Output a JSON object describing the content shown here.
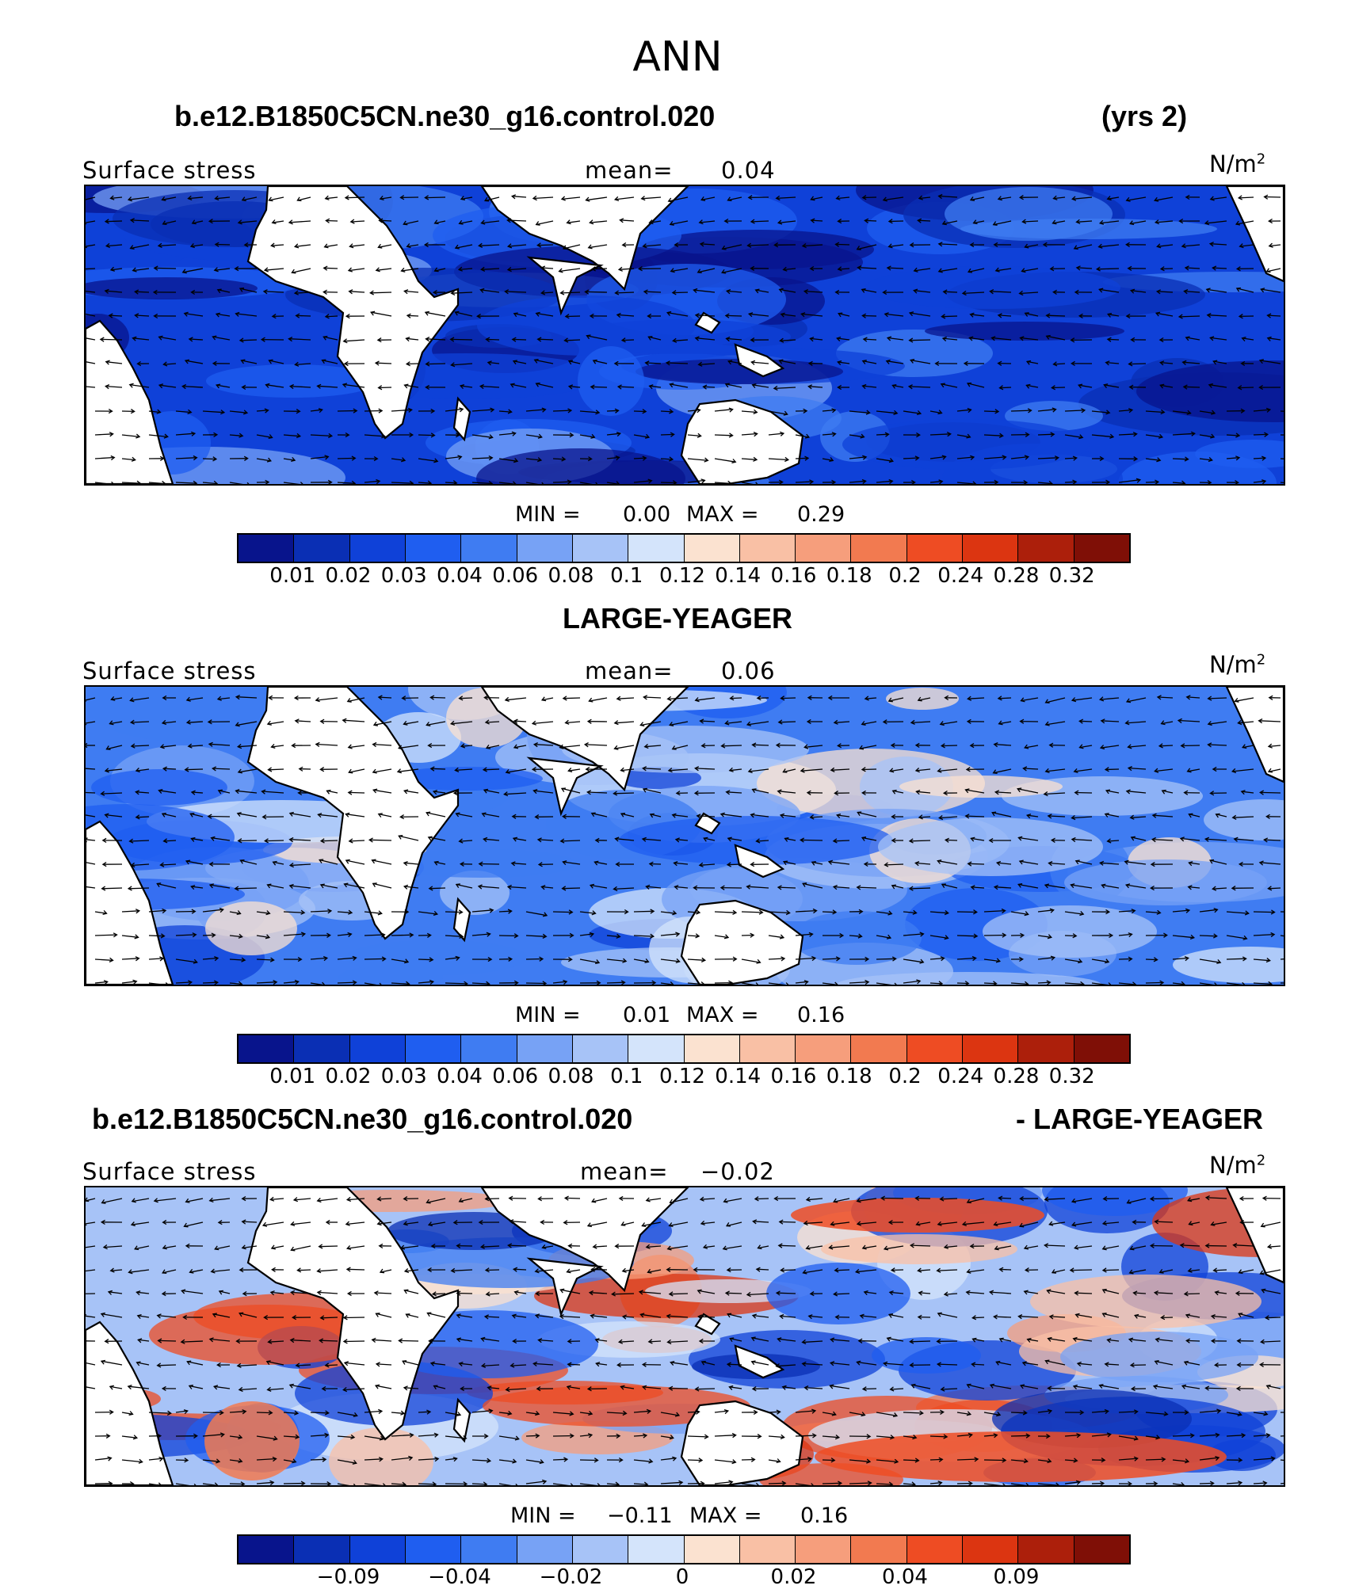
{
  "title": "ANN",
  "panels": [
    {
      "case_left": "b.e12.B1850C5CN.ne30_g16.control.020",
      "case_right": "(yrs 2)",
      "variable": "Surface stress",
      "mean_label": "mean=",
      "mean_value": "0.04",
      "unit_base": "N/m",
      "unit_exp": "2",
      "min_label": "MIN =",
      "min_value": "0.00",
      "max_label": "MAX =",
      "max_value": "0.29",
      "tick_labels": [
        "0.01",
        "0.02",
        "0.03",
        "0.04",
        "0.06",
        "0.08",
        "0.1",
        "0.12",
        "0.14",
        "0.16",
        "0.18",
        "0.2",
        "0.24",
        "0.28",
        "0.32"
      ],
      "colors": [
        "#08148c",
        "#0a2fb4",
        "#0f41d8",
        "#1f5ef0",
        "#3f7cf2",
        "#77a2f5",
        "#a7c3f7",
        "#d4e4fb",
        "#fbe2d0",
        "#f9c0a5",
        "#f69e7c",
        "#f27a50",
        "#ee4c23",
        "#dc3511",
        "#ac1f0b",
        "#7f0f06"
      ],
      "field_bias": 0.0
    },
    {
      "case_left": "",
      "case_center": "LARGE-YEAGER",
      "case_right": "",
      "variable": "Surface stress",
      "mean_label": "mean=",
      "mean_value": "0.06",
      "unit_base": "N/m",
      "unit_exp": "2",
      "min_label": "MIN =",
      "min_value": "0.01",
      "max_label": "MAX =",
      "max_value": "0.16",
      "tick_labels": [
        "0.01",
        "0.02",
        "0.03",
        "0.04",
        "0.06",
        "0.08",
        "0.1",
        "0.12",
        "0.14",
        "0.16",
        "0.18",
        "0.2",
        "0.24",
        "0.28",
        "0.32"
      ],
      "colors": [
        "#08148c",
        "#0a2fb4",
        "#0f41d8",
        "#1f5ef0",
        "#3f7cf2",
        "#77a2f5",
        "#a7c3f7",
        "#d4e4fb",
        "#fbe2d0",
        "#f9c0a5",
        "#f69e7c",
        "#f27a50",
        "#ee4c23",
        "#dc3511",
        "#ac1f0b",
        "#7f0f06"
      ],
      "field_bias": 1.0
    },
    {
      "case_left": "b.e12.B1850C5CN.ne30_g16.control.020",
      "case_right": "- LARGE-YEAGER",
      "variable": "Surface stress",
      "mean_label": "mean=",
      "mean_value": "−0.02",
      "unit_base": "N/m",
      "unit_exp": "2",
      "min_label": "MIN =",
      "min_value": "−0.11",
      "max_label": "MAX =",
      "max_value": "0.16",
      "tick_labels": [
        "",
        "−0.09",
        "",
        "−0.04",
        "",
        "−0.02",
        "",
        "0",
        "",
        "0.02",
        "",
        "0.04",
        "",
        "0.09",
        ""
      ],
      "colors": [
        "#08148c",
        "#0a2fb4",
        "#0f41d8",
        "#1f5ef0",
        "#3f7cf2",
        "#77a2f5",
        "#a7c3f7",
        "#d4e4fb",
        "#fbe2d0",
        "#f9c0a5",
        "#f69e7c",
        "#f27a50",
        "#ee4c23",
        "#dc3511",
        "#ac1f0b",
        "#7f0f06"
      ],
      "field_bias": 2.0
    }
  ]
}
